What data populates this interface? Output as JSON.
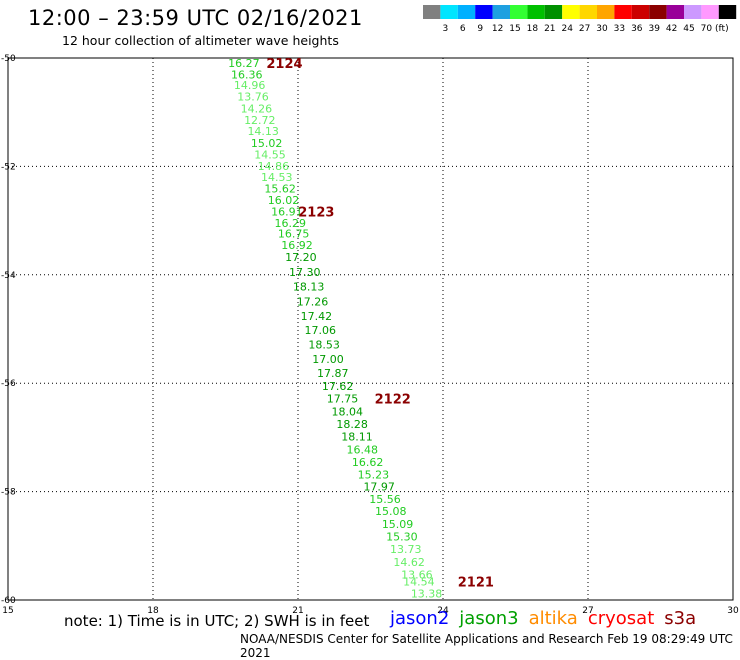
{
  "header": {
    "title": "12:00 – 23:59 UTC 02/16/2021",
    "subtitle": "12 hour collection of altimeter wave heights"
  },
  "color_scale": {
    "bins": [
      {
        "color": "#808080",
        "label": ""
      },
      {
        "color": "#00e5ff",
        "label": "3"
      },
      {
        "color": "#00b0ff",
        "label": "6"
      },
      {
        "color": "#0000ff",
        "label": "9"
      },
      {
        "color": "#1ea0e0",
        "label": "12"
      },
      {
        "color": "#33ff33",
        "label": "15"
      },
      {
        "color": "#00c000",
        "label": "18"
      },
      {
        "color": "#009000",
        "label": "21"
      },
      {
        "color": "#ffff00",
        "label": "24"
      },
      {
        "color": "#ffd700",
        "label": "27"
      },
      {
        "color": "#ffa500",
        "label": "30"
      },
      {
        "color": "#ff0000",
        "label": "33"
      },
      {
        "color": "#cc0000",
        "label": "36"
      },
      {
        "color": "#8b0000",
        "label": "39"
      },
      {
        "color": "#990099",
        "label": "42"
      },
      {
        "color": "#cc99ff",
        "label": "45"
      },
      {
        "color": "#ff99ff",
        "label": "70"
      },
      {
        "color": "#000000",
        "label": "(ft)"
      }
    ]
  },
  "note": "note: 1) Time is in UTC; 2) SWH is in feet",
  "legend": [
    {
      "name": "jason2",
      "color": "#0000ff"
    },
    {
      "name": "jason3",
      "color": "#00a000"
    },
    {
      "name": "altika",
      "color": "#ff8c00"
    },
    {
      "name": "cryosat",
      "color": "#ff0000"
    },
    {
      "name": "s3a",
      "color": "#8b0000"
    }
  ],
  "footer": "NOAA/NESDIS Center for Satellite Applications and Research    Feb 19 08:29:49 UTC 2021",
  "colors": {
    "light": "#66ee66",
    "mid": "#22cc22",
    "dark": "#009900",
    "pass": "#8b0000"
  },
  "chart_data": {
    "type": "scatter",
    "title": "12:00 – 23:59 UTC 02/16/2021",
    "subtitle": "12 hour collection of altimeter wave heights",
    "xlim": [
      15,
      30
    ],
    "ylim": [
      -60,
      -50
    ],
    "x_ticks": [
      "15",
      "18",
      "21",
      "24",
      "27",
      "30"
    ],
    "y_ticks": [
      "-50",
      "-52",
      "-54",
      "-56",
      "-58",
      "-60"
    ],
    "grid": true,
    "series_name": "jason3",
    "points": [
      {
        "x": 19.88,
        "y": -50.09,
        "v": "16.27"
      },
      {
        "x": 19.94,
        "y": -50.3,
        "v": "16.36"
      },
      {
        "x": 20.0,
        "y": -50.5,
        "v": "14.96"
      },
      {
        "x": 20.07,
        "y": -50.71,
        "v": "13.76"
      },
      {
        "x": 20.14,
        "y": -50.93,
        "v": "14.26"
      },
      {
        "x": 20.21,
        "y": -51.14,
        "v": "12.72"
      },
      {
        "x": 20.28,
        "y": -51.35,
        "v": "14.13"
      },
      {
        "x": 20.35,
        "y": -51.57,
        "v": "15.02"
      },
      {
        "x": 20.42,
        "y": -51.78,
        "v": "14.55"
      },
      {
        "x": 20.49,
        "y": -51.99,
        "v": "14.86"
      },
      {
        "x": 20.56,
        "y": -52.2,
        "v": "14.53"
      },
      {
        "x": 20.63,
        "y": -52.41,
        "v": "15.62"
      },
      {
        "x": 20.7,
        "y": -52.62,
        "v": "16.02"
      },
      {
        "x": 20.77,
        "y": -52.83,
        "v": "16.91"
      },
      {
        "x": 20.84,
        "y": -53.04,
        "v": "16.29"
      },
      {
        "x": 20.91,
        "y": -53.24,
        "v": "16.75"
      },
      {
        "x": 20.98,
        "y": -53.45,
        "v": "16.92"
      },
      {
        "x": 21.06,
        "y": -53.67,
        "v": "17.20"
      },
      {
        "x": 21.14,
        "y": -53.95,
        "v": "17.30"
      },
      {
        "x": 21.22,
        "y": -54.22,
        "v": "18.13"
      },
      {
        "x": 21.3,
        "y": -54.49,
        "v": "17.26"
      },
      {
        "x": 21.38,
        "y": -54.76,
        "v": "17.42"
      },
      {
        "x": 21.46,
        "y": -55.02,
        "v": "17.06"
      },
      {
        "x": 21.54,
        "y": -55.29,
        "v": "18.53"
      },
      {
        "x": 21.62,
        "y": -55.55,
        "v": "17.00"
      },
      {
        "x": 21.72,
        "y": -55.81,
        "v": "17.87"
      },
      {
        "x": 21.82,
        "y": -56.05,
        "v": "17.62"
      },
      {
        "x": 21.92,
        "y": -56.28,
        "v": "17.75"
      },
      {
        "x": 22.02,
        "y": -56.52,
        "v": "18.04"
      },
      {
        "x": 22.12,
        "y": -56.75,
        "v": "18.28"
      },
      {
        "x": 22.22,
        "y": -56.98,
        "v": "18.11"
      },
      {
        "x": 22.33,
        "y": -57.22,
        "v": "16.48"
      },
      {
        "x": 22.44,
        "y": -57.45,
        "v": "16.62"
      },
      {
        "x": 22.56,
        "y": -57.68,
        "v": "15.23"
      },
      {
        "x": 22.68,
        "y": -57.91,
        "v": "17.97"
      },
      {
        "x": 22.8,
        "y": -58.14,
        "v": "15.56"
      },
      {
        "x": 22.92,
        "y": -58.36,
        "v": "15.08"
      },
      {
        "x": 23.06,
        "y": -58.6,
        "v": "15.09"
      },
      {
        "x": 23.15,
        "y": -58.83,
        "v": "15.30"
      },
      {
        "x": 23.23,
        "y": -59.06,
        "v": "13.73"
      },
      {
        "x": 23.3,
        "y": -59.3,
        "v": "14.62"
      },
      {
        "x": 23.46,
        "y": -59.53,
        "v": "13.66"
      },
      {
        "x": 23.5,
        "y": -59.66,
        "v": "14.54"
      },
      {
        "x": 23.66,
        "y": -59.88,
        "v": "13.38"
      }
    ],
    "pass_labels": [
      {
        "x": 20.72,
        "y": -50.09,
        "v": "2124"
      },
      {
        "x": 21.38,
        "y": -52.83,
        "v": "2123"
      },
      {
        "x": 22.96,
        "y": -56.28,
        "v": "2122"
      },
      {
        "x": 24.68,
        "y": -59.66,
        "v": "2121"
      }
    ]
  }
}
